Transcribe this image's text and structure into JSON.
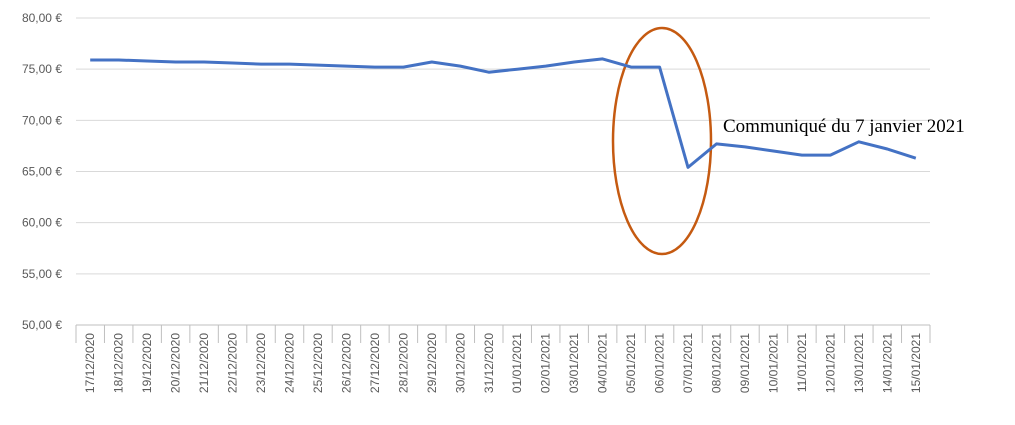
{
  "chart_data": {
    "type": "line",
    "annotation": "Communiqué du 7 janvier 2021",
    "categories": [
      "17/12/2020",
      "18/12/2020",
      "19/12/2020",
      "20/12/2020",
      "21/12/2020",
      "22/12/2020",
      "23/12/2020",
      "24/12/2020",
      "25/12/2020",
      "26/12/2020",
      "27/12/2020",
      "28/12/2020",
      "29/12/2020",
      "30/12/2020",
      "31/12/2020",
      "01/01/2021",
      "02/01/2021",
      "03/01/2021",
      "04/01/2021",
      "05/01/2021",
      "06/01/2021",
      "07/01/2021",
      "08/01/2021",
      "09/01/2021",
      "10/01/2021",
      "11/01/2021",
      "12/01/2021",
      "13/01/2021",
      "14/01/2021",
      "15/01/2021"
    ],
    "values": [
      75.9,
      75.9,
      75.8,
      75.7,
      75.7,
      75.6,
      75.5,
      75.5,
      75.4,
      75.3,
      75.2,
      75.2,
      75.7,
      75.3,
      74.7,
      75.0,
      75.3,
      75.7,
      76.0,
      75.2,
      75.2,
      65.4,
      67.7,
      67.4,
      67.0,
      66.6,
      66.6,
      67.9,
      67.2,
      66.3
    ],
    "color": "#4472c4",
    "ylim": [
      50,
      80
    ],
    "yticks": [
      {
        "value": 50,
        "label": "50,00 €"
      },
      {
        "value": 55,
        "label": "55,00 €"
      },
      {
        "value": 60,
        "label": "60,00 €"
      },
      {
        "value": 65,
        "label": "65,00 €"
      },
      {
        "value": 70,
        "label": "70,00 €"
      },
      {
        "value": 75,
        "label": "75,00 €"
      },
      {
        "value": 80,
        "label": "80,00 €"
      }
    ],
    "grid": true
  }
}
